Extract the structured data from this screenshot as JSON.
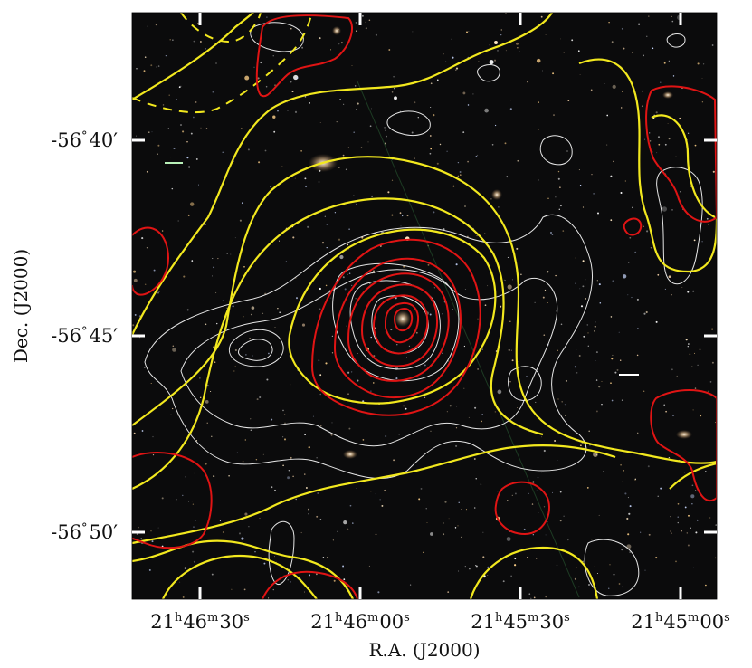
{
  "figure": {
    "x_axis_label": "R.A. (J2000)",
    "y_axis_label": "Dec. (J2000)",
    "ra_ticks": [
      {
        "h": "21",
        "m": "46",
        "s": "30"
      },
      {
        "h": "21",
        "m": "46",
        "s": "00"
      },
      {
        "h": "21",
        "m": "45",
        "s": "30"
      },
      {
        "h": "21",
        "m": "45",
        "s": "00"
      }
    ],
    "dec_ticks": [
      {
        "deg": "-56",
        "min": "40"
      },
      {
        "deg": "-56",
        "min": "45"
      },
      {
        "deg": "-56",
        "min": "50"
      }
    ],
    "ra_units": {
      "h": "h",
      "m": "m",
      "s": "s"
    },
    "dec_units": {
      "deg": "°",
      "min": "′"
    },
    "colors": {
      "sky_background": "#0b0b0c",
      "contour_yellow": "#f2e81e",
      "contour_red": "#e01414",
      "contour_white": "#e6e6e6",
      "ticks": "#ffffff"
    }
  }
}
